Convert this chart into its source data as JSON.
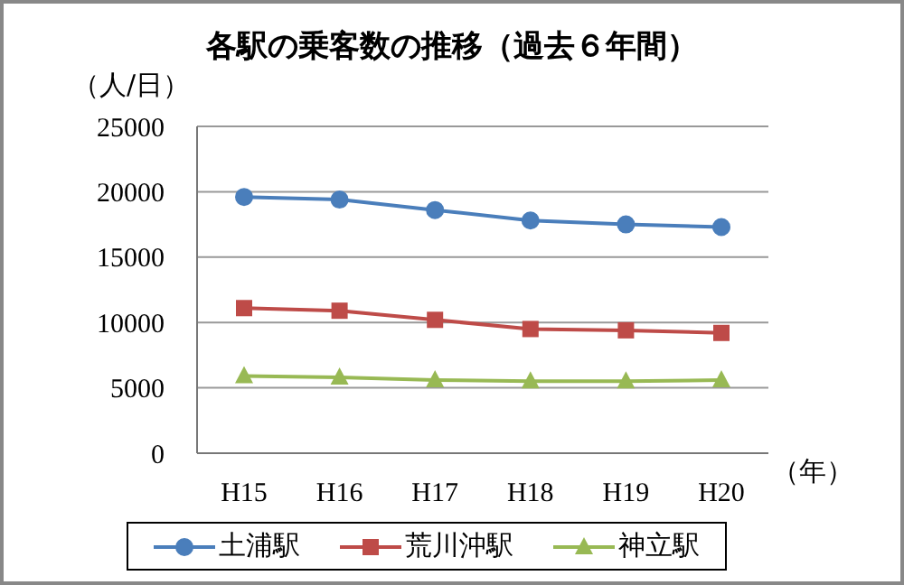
{
  "chart_data": {
    "type": "line",
    "title": "各駅の乗客数の推移（過去６年間）",
    "ylabel": "（人/日）",
    "xlabel": "（年）",
    "categories": [
      "H15",
      "H16",
      "H17",
      "H18",
      "H19",
      "H20"
    ],
    "series": [
      {
        "name": "土浦駅",
        "color": "#4a7ebb",
        "values": [
          19600,
          19400,
          18600,
          17800,
          17500,
          17300
        ],
        "marker": "circle"
      },
      {
        "name": "荒川沖駅",
        "color": "#be4b48",
        "values": [
          11100,
          10900,
          10200,
          9500,
          9400,
          9200
        ],
        "marker": "square"
      },
      {
        "name": "神立駅",
        "color": "#98b954",
        "values": [
          5900,
          5800,
          5600,
          5500,
          5500,
          5600
        ],
        "marker": "triangle"
      }
    ],
    "ylim": [
      0,
      25000
    ],
    "yticks": [
      0,
      5000,
      10000,
      15000,
      20000,
      25000
    ],
    "grid": "y",
    "legend": "bottom",
    "line_style": "solid"
  }
}
